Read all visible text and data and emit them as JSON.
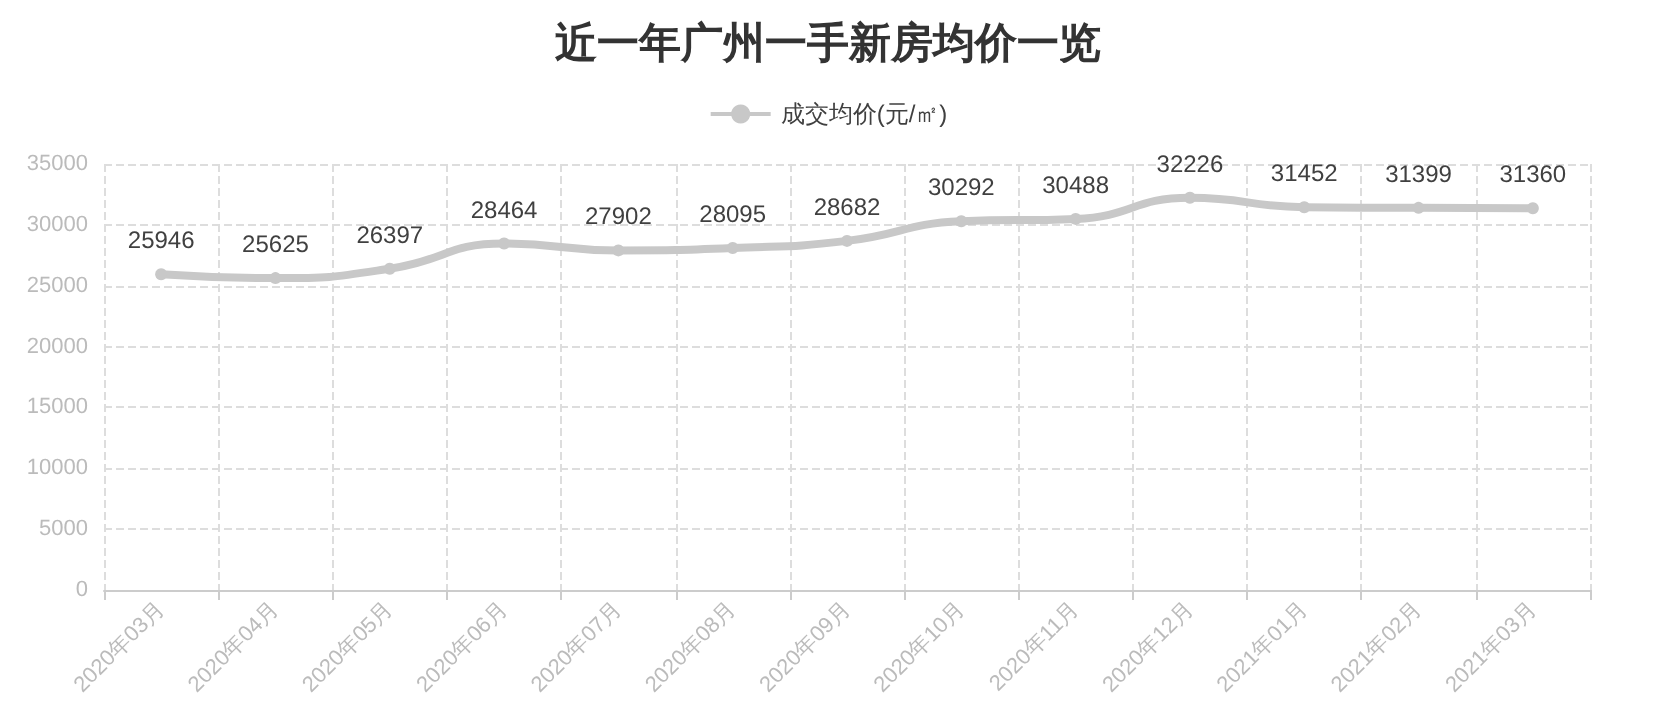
{
  "chart_data": {
    "type": "line",
    "title": "近一年广州一手新房均价一览",
    "categories": [
      "2020年03月",
      "2020年04月",
      "2020年05月",
      "2020年06月",
      "2020年07月",
      "2020年08月",
      "2020年09月",
      "2020年10月",
      "2020年11月",
      "2020年12月",
      "2021年01月",
      "2021年02月",
      "2021年03月"
    ],
    "series": [
      {
        "name": "成交均价(元/㎡)",
        "color": "#c8c8c8",
        "values": [
          25946,
          25625,
          26397,
          28464,
          27902,
          28095,
          28682,
          30292,
          30488,
          32226,
          31452,
          31399,
          31360
        ]
      }
    ],
    "ylim": [
      0,
      35000
    ],
    "yticks": [
      0,
      5000,
      10000,
      15000,
      20000,
      25000,
      30000,
      35000
    ],
    "grid": true,
    "legend": "top",
    "marker": "circle",
    "data_labels": true
  }
}
